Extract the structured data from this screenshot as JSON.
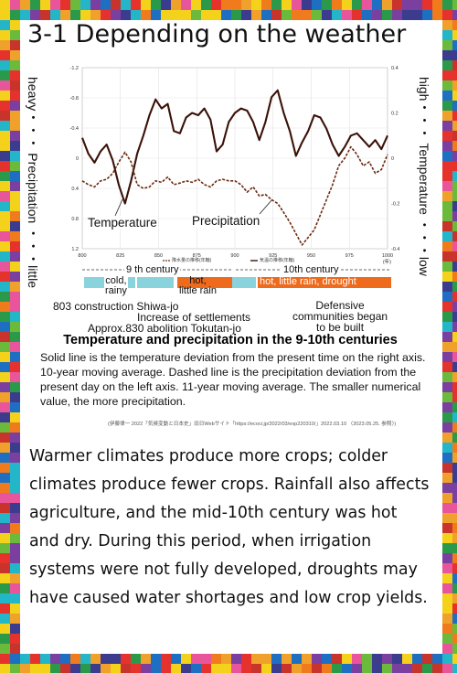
{
  "title": "3-1 Depending on the weather",
  "chart_data": {
    "type": "line",
    "x_ticks": [
      "800",
      "825",
      "850",
      "875",
      "900",
      "925",
      "950",
      "975",
      "1000"
    ],
    "x_unit": "(年)",
    "xlim": [
      800,
      1000
    ],
    "y_left_ticks": [
      "-1.2",
      "-0.8",
      "-0.4",
      "0",
      "0.4",
      "0.8",
      "1.2"
    ],
    "ylim_left": [
      1.2,
      -1.2
    ],
    "y_right_ticks": [
      "0.4",
      "0.2",
      "0",
      "-0.2",
      "-0.4"
    ],
    "ylim_right": [
      -0.4,
      0.4
    ],
    "left_axis_label": "heavy・・・ Precipitation ・・・little",
    "right_axis_label": "high・・・ Temperature ・・・low",
    "series": [
      {
        "name": "Temperature",
        "style": "solid",
        "axis": "right",
        "x": [
          800,
          804,
          808,
          812,
          816,
          820,
          824,
          828,
          832,
          836,
          840,
          844,
          848,
          852,
          856,
          860,
          864,
          868,
          872,
          876,
          880,
          884,
          888,
          892,
          896,
          900,
          904,
          908,
          912,
          916,
          920,
          924,
          928,
          932,
          936,
          940,
          944,
          948,
          952,
          956,
          960,
          964,
          968,
          972,
          976,
          980,
          984,
          988,
          992,
          996,
          1000
        ],
        "values": [
          0.09,
          0.02,
          -0.02,
          0.03,
          0.06,
          -0.01,
          -0.12,
          -0.2,
          -0.1,
          0.02,
          0.1,
          0.19,
          0.26,
          0.22,
          0.24,
          0.12,
          0.11,
          0.18,
          0.2,
          0.19,
          0.22,
          0.17,
          0.03,
          0.06,
          0.16,
          0.2,
          0.22,
          0.21,
          0.16,
          0.08,
          0.16,
          0.27,
          0.3,
          0.2,
          0.12,
          0.01,
          0.07,
          0.12,
          0.19,
          0.18,
          0.13,
          0.06,
          0.01,
          0.05,
          0.1,
          0.11,
          0.08,
          0.05,
          0.08,
          0.04,
          0.1
        ]
      },
      {
        "name": "Precipitation",
        "style": "dashed",
        "axis": "left",
        "x": [
          800,
          804,
          808,
          812,
          816,
          820,
          824,
          828,
          832,
          836,
          840,
          844,
          848,
          852,
          856,
          860,
          864,
          868,
          872,
          876,
          880,
          884,
          888,
          892,
          896,
          900,
          904,
          908,
          912,
          916,
          920,
          924,
          928,
          932,
          936,
          940,
          944,
          948,
          952,
          956,
          960,
          964,
          968,
          972,
          976,
          980,
          984,
          988,
          992,
          996,
          1000
        ],
        "values": [
          0.3,
          0.35,
          0.38,
          0.3,
          0.28,
          0.2,
          0.05,
          -0.08,
          0.05,
          0.35,
          0.4,
          0.38,
          0.3,
          0.32,
          0.25,
          0.35,
          0.33,
          0.3,
          0.32,
          0.28,
          0.35,
          0.38,
          0.3,
          0.28,
          0.3,
          0.3,
          0.35,
          0.45,
          0.38,
          0.5,
          0.48,
          0.55,
          0.6,
          0.72,
          0.85,
          1.0,
          1.15,
          1.05,
          0.95,
          0.75,
          0.55,
          0.35,
          0.1,
          0.0,
          -0.15,
          -0.05,
          0.1,
          0.05,
          0.2,
          0.15,
          -0.05
        ]
      }
    ],
    "annotations": {
      "temperature_label": "Temperature",
      "precipitation_label": "Precipitation",
      "legend_entries": [
        "降水量の推移(年輪)",
        "気温の推移(年輪)"
      ]
    },
    "eras": {
      "century9": "9 th century",
      "century10": "10th century",
      "cold": "cold,\nrainy",
      "hot": "hot,\nlittle rain",
      "hot_drought": "hot, little rain, drought"
    },
    "events": {
      "e803": "803 construction Shiwa-jo",
      "e830": "Approx.830 abolition Tokutan-jo",
      "settlements": "Increase of settlements",
      "defensive": "Defensive\ncommunities began\nto be built"
    },
    "title": "Temperature and precipitation in the 9-10th centuries"
  },
  "caption": "Solid line is the temperature deviation from the present time on the right axis. 10-year moving average.  Dashed line is the precipitation deviation from the present day on the left axis. 11-year moving average. The smaller numerical value, the more precipitation.",
  "source": "(伊藤律一 2022「気候変動と日本史」旧日Webサイト「https://ecoci.jp/2022/03/exp220310/」2022.03.10 〈2023.05.25. 参照〉)",
  "body_text": "Warmer climates produce more crops; colder climates produce fewer crops. Rainfall also affects agriculture, and the mid-10th century was hot and dry. During this period, when irrigation systems were not fully developed, droughts may have caused water shortages and low crop yields.",
  "colors": {
    "series_line": "#3a1208",
    "dashed_line": "#6b2a0f",
    "era_cyan": "#89d3dc",
    "era_orange": "#ee6a1c",
    "border_palette": [
      "#e5322d",
      "#f0a12b",
      "#2a9a4a",
      "#1e6fc2",
      "#7b3fa0",
      "#f4d21c",
      "#e8559b",
      "#23b6c8",
      "#3c3c8f",
      "#c8332c",
      "#6cba3b",
      "#f07b1c"
    ]
  }
}
